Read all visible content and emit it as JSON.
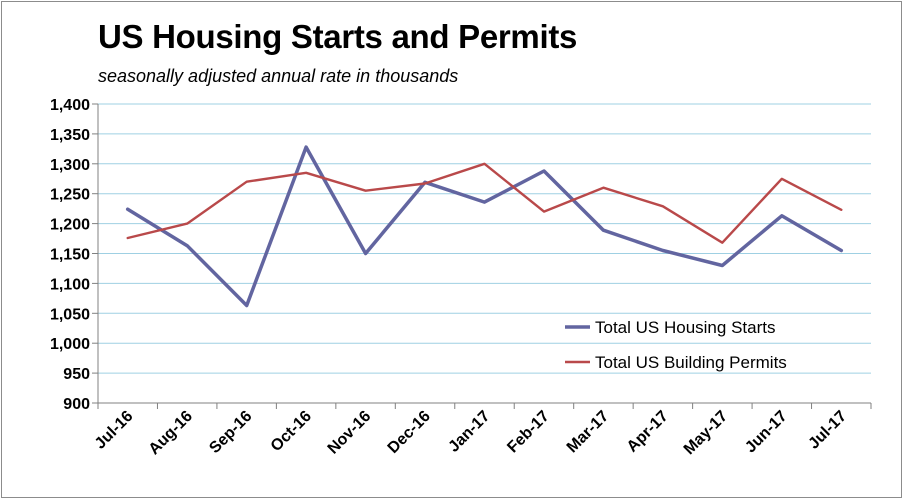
{
  "chart_data": {
    "type": "line",
    "title": "US Housing Starts and Permits",
    "subtitle": "seasonally adjusted annual rate in thousands",
    "xlabel": "",
    "ylabel": "",
    "categories": [
      "Jul-16",
      "Aug-16",
      "Sep-16",
      "Oct-16",
      "Nov-16",
      "Dec-16",
      "Jan-17",
      "Feb-17",
      "Mar-17",
      "Apr-17",
      "May-17",
      "Jun-17",
      "Jul-17"
    ],
    "ylim": [
      900,
      1400
    ],
    "yticks": [
      900,
      950,
      1000,
      1050,
      1100,
      1150,
      1200,
      1250,
      1300,
      1350,
      1400
    ],
    "ytick_labels": [
      "900",
      "950",
      "1,000",
      "1,050",
      "1,100",
      "1,150",
      "1,200",
      "1,250",
      "1,300",
      "1,350",
      "1,400"
    ],
    "grid": true,
    "legend_position": "bottom-right",
    "series": [
      {
        "name": "Total US Housing Starts",
        "color": "#6265a0",
        "values": [
          1224,
          1163,
          1063,
          1328,
          1150,
          1269,
          1236,
          1288,
          1189,
          1155,
          1130,
          1213,
          1155
        ]
      },
      {
        "name": "Total US Building Permits",
        "color": "#b9494a",
        "values": [
          1176,
          1200,
          1270,
          1285,
          1255,
          1267,
          1300,
          1220,
          1260,
          1229,
          1168,
          1275,
          1223
        ]
      }
    ]
  }
}
